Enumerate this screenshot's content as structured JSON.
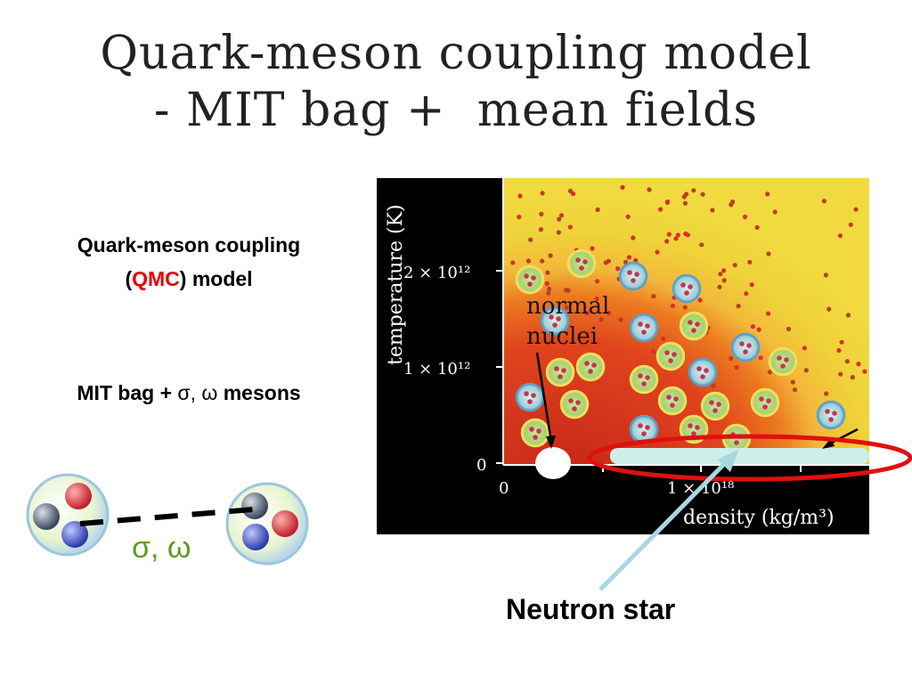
{
  "slide": {
    "title_line1": "Quark-meson coupling model",
    "title_line2": "- MIT bag +  mean fields"
  },
  "left_panel": {
    "qmc_line1": "Quark-meson coupling",
    "qmc_open": "(",
    "qmc_abbrev": "QMC",
    "qmc_close": ") model",
    "mit_prefix": "MIT bag + ",
    "mit_symbols": "σ, ω",
    "mit_suffix": " mesons",
    "exchange_label": "σ, ω"
  },
  "phase_diagram": {
    "ylabel": "temperature (K)",
    "xlabel": "density (kg/m³)",
    "ytick_top": "2 × 10¹²",
    "ytick_mid": "1 × 10¹²",
    "ytick_zero": "0",
    "xtick_zero": "0",
    "xtick_mid": "1 × 10¹⁸",
    "annotation_line1": "normal",
    "annotation_line2": "nuclei"
  },
  "callout": {
    "neutron_star": "Neutron star"
  },
  "colors": {
    "qmc_red": "#e60000",
    "meson_green": "#5a9e1e",
    "highlight_ellipse": "#e01010",
    "callout_arrow": "#a8d8e0"
  }
}
